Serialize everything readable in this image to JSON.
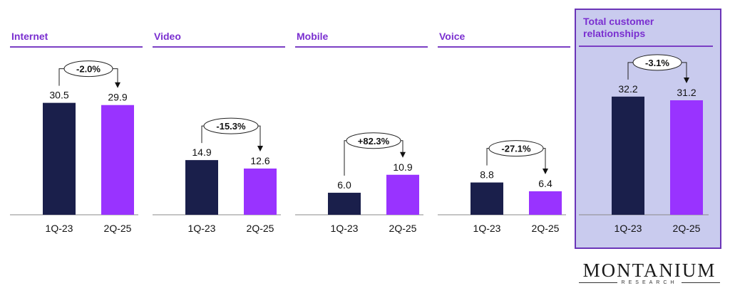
{
  "chart_data": [
    {
      "type": "bar",
      "title": "Internet",
      "categories": [
        "1Q-23",
        "2Q-25"
      ],
      "values": [
        30.5,
        29.9
      ],
      "change_label": "-2.0%",
      "highlight": false
    },
    {
      "type": "bar",
      "title": "Video",
      "categories": [
        "1Q-23",
        "2Q-25"
      ],
      "values": [
        14.9,
        12.6
      ],
      "change_label": "-15.3%",
      "highlight": false
    },
    {
      "type": "bar",
      "title": "Mobile",
      "categories": [
        "1Q-23",
        "2Q-25"
      ],
      "values": [
        6.0,
        10.9
      ],
      "change_label": "+82.3%",
      "highlight": false
    },
    {
      "type": "bar",
      "title": "Voice",
      "categories": [
        "1Q-23",
        "2Q-25"
      ],
      "values": [
        8.8,
        6.4
      ],
      "change_label": "-27.1%",
      "highlight": false
    },
    {
      "type": "bar",
      "title": "Total customer relationships",
      "categories": [
        "1Q-23",
        "2Q-25"
      ],
      "values": [
        32.2,
        31.2
      ],
      "change_label": "-3.1%",
      "highlight": true
    }
  ],
  "colors": {
    "bar_1q23": "#1a1f4b",
    "bar_2q25": "#9933ff",
    "title": "#7a2fd0",
    "rule": "#7b3fc4",
    "highlight_fill": "#c9cbee",
    "highlight_border": "#6b35b8"
  },
  "logo": {
    "main": "MONTANIUM",
    "sub": "RESEARCH"
  }
}
